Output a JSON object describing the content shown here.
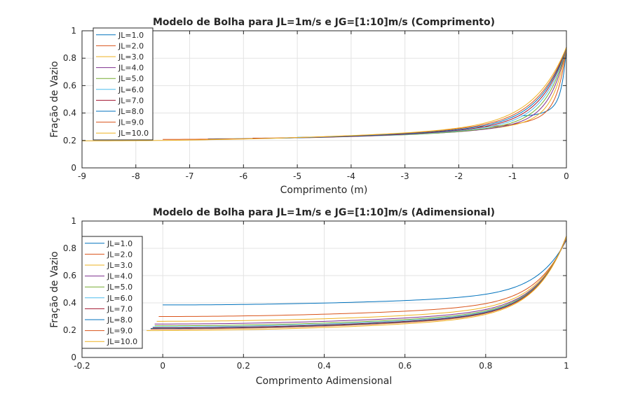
{
  "colors": [
    "#0072BD",
    "#D95319",
    "#EDB120",
    "#7E2F8E",
    "#77AC30",
    "#4DBEEE",
    "#A2142F",
    "#0072BD",
    "#D95319",
    "#EDB120"
  ],
  "chart_data": [
    {
      "type": "line",
      "title": "Modelo de Bolha para JL=1m/s e JG=[1:10]m/s (Comprimento)",
      "xlabel": "Comprimento (m)",
      "ylabel": "Fração de Vazio",
      "xlim": [
        -9,
        0
      ],
      "ylim": [
        0,
        1
      ],
      "xticks": [
        -9,
        -8,
        -7,
        -6,
        -5,
        -4,
        -3,
        -2,
        -1,
        0
      ],
      "xtick_labels": [
        "-9",
        "-8",
        "-7",
        "-6",
        "-5",
        "-4",
        "-3",
        "-2",
        "-1",
        "0"
      ],
      "yticks": [
        0,
        0.2,
        0.4,
        0.6,
        0.8,
        1
      ],
      "ytick_labels": [
        "0",
        "0.2",
        "0.4",
        "0.6",
        "0.8",
        "1"
      ],
      "grid": true,
      "legend_position": "top-left",
      "series": [
        {
          "name": "JL=1.0",
          "x_start": -0.83,
          "y_start": 0.38,
          "y_end": 0.88
        },
        {
          "name": "JL=2.0",
          "x_start": -1.66,
          "y_start": 0.3,
          "y_end": 0.88
        },
        {
          "name": "JL=3.0",
          "x_start": -2.5,
          "y_start": 0.265,
          "y_end": 0.88
        },
        {
          "name": "JL=4.0",
          "x_start": -3.33,
          "y_start": 0.245,
          "y_end": 0.88
        },
        {
          "name": "JL=5.0",
          "x_start": -4.16,
          "y_start": 0.232,
          "y_end": 0.88
        },
        {
          "name": "JL=6.0",
          "x_start": -5.0,
          "y_start": 0.224,
          "y_end": 0.88
        },
        {
          "name": "JL=7.0",
          "x_start": -5.83,
          "y_start": 0.217,
          "y_end": 0.88
        },
        {
          "name": "JL=8.0",
          "x_start": -6.66,
          "y_start": 0.212,
          "y_end": 0.88
        },
        {
          "name": "JL=9.0",
          "x_start": -7.5,
          "y_start": 0.208,
          "y_end": 0.88
        },
        {
          "name": "JL=10.0",
          "x_start": -9.0,
          "y_start": 0.197,
          "y_end": 0.88
        }
      ]
    },
    {
      "type": "line",
      "title": "Modelo de Bolha para JL=1m/s e JG=[1:10]m/s (Adimensional)",
      "xlabel": "Comprimento Adimensional",
      "ylabel": "Fração de Vazio",
      "xlim": [
        -0.2,
        1
      ],
      "ylim": [
        0,
        1
      ],
      "xticks": [
        -0.2,
        0,
        0.2,
        0.4,
        0.6,
        0.8,
        1
      ],
      "xtick_labels": [
        "-0.2",
        "0",
        "0.2",
        "0.4",
        "0.6",
        "0.8",
        "1"
      ],
      "yticks": [
        0,
        0.2,
        0.4,
        0.6,
        0.8,
        1
      ],
      "ytick_labels": [
        "0",
        "0.2",
        "0.4",
        "0.6",
        "0.8",
        "1"
      ],
      "grid": true,
      "legend_position": "left",
      "series": [
        {
          "name": "JL=1.0",
          "x_start": 0.0,
          "y_start": 0.385,
          "y_end": 0.86
        },
        {
          "name": "JL=2.0",
          "x_start": -0.01,
          "y_start": 0.3,
          "y_end": 0.87
        },
        {
          "name": "JL=3.0",
          "x_start": -0.015,
          "y_start": 0.265,
          "y_end": 0.88
        },
        {
          "name": "JL=4.0",
          "x_start": -0.02,
          "y_start": 0.245,
          "y_end": 0.88
        },
        {
          "name": "JL=5.0",
          "x_start": -0.02,
          "y_start": 0.232,
          "y_end": 0.885
        },
        {
          "name": "JL=6.0",
          "x_start": -0.025,
          "y_start": 0.224,
          "y_end": 0.885
        },
        {
          "name": "JL=7.0",
          "x_start": -0.025,
          "y_start": 0.217,
          "y_end": 0.89
        },
        {
          "name": "JL=8.0",
          "x_start": -0.03,
          "y_start": 0.212,
          "y_end": 0.89
        },
        {
          "name": "JL=9.0",
          "x_start": -0.03,
          "y_start": 0.208,
          "y_end": 0.89
        },
        {
          "name": "JL=10.0",
          "x_start": -0.04,
          "y_start": 0.197,
          "y_end": 0.89
        }
      ]
    }
  ]
}
